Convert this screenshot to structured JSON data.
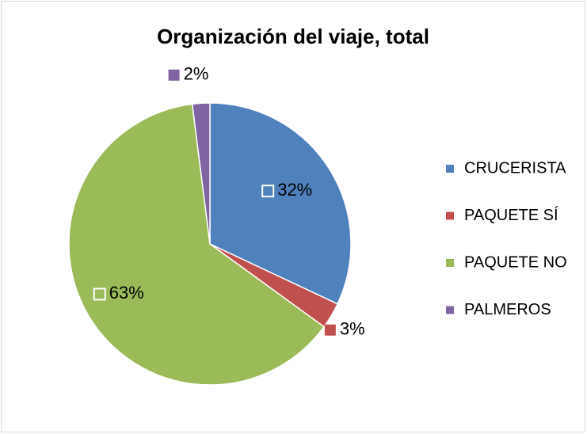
{
  "chart_data": {
    "type": "pie",
    "title": "Organización del viaje, total",
    "categories": [
      "CRUCERISTA",
      "PAQUETE SÍ",
      "PAQUETE NO",
      "PALMEROS"
    ],
    "values": [
      32,
      3,
      63,
      2
    ],
    "value_labels": [
      "32%",
      "3%",
      "63%",
      "2%"
    ],
    "colors": [
      "#4f81bd",
      "#c0504d",
      "#9bbb59",
      "#8064a2"
    ],
    "legend": "right"
  }
}
